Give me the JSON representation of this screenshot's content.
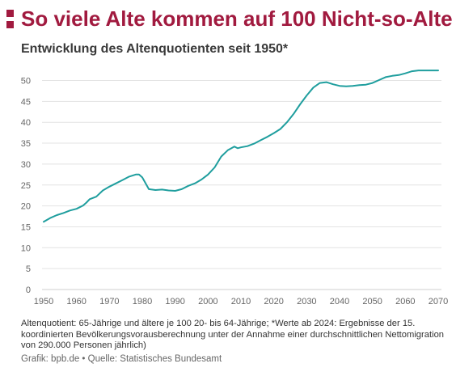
{
  "header": {
    "title": "So viele Alte kommen auf 100 Nicht-so-Alte",
    "subtitle": "Entwicklung des Altenquotienten seit 1950*"
  },
  "colors": {
    "accent": "#a11a3f",
    "line": "#1f9e9e",
    "grid": "#e3e3e3"
  },
  "chart_data": {
    "type": "line",
    "title": "So viele Alte kommen auf 100 Nicht-so-Alte",
    "subtitle": "Entwicklung des Altenquotienten seit 1950*",
    "xlabel": "",
    "ylabel": "",
    "xlim": [
      1950,
      2070
    ],
    "ylim": [
      0,
      53
    ],
    "x_ticks": [
      1950,
      1960,
      1970,
      1980,
      1990,
      2000,
      2010,
      2020,
      2030,
      2040,
      2050,
      2060,
      2070
    ],
    "y_ticks": [
      0,
      5,
      10,
      15,
      20,
      25,
      30,
      35,
      40,
      45,
      50
    ],
    "grid": "horizontal",
    "series": [
      {
        "x": [
          1950,
          1952,
          1954,
          1956,
          1958,
          1960,
          1962,
          1963,
          1964,
          1966,
          1968,
          1970,
          1972,
          1974,
          1976,
          1978,
          1979,
          1980,
          1982,
          1984,
          1986,
          1988,
          1990,
          1992,
          1994,
          1996,
          1998,
          2000,
          2002,
          2004,
          2006,
          2008,
          2009,
          2010,
          2012,
          2014,
          2016,
          2018,
          2020,
          2022,
          2024,
          2026,
          2028,
          2030,
          2032,
          2034,
          2036,
          2038,
          2040,
          2042,
          2044,
          2046,
          2048,
          2050,
          2052,
          2054,
          2056,
          2058,
          2060,
          2062,
          2064,
          2066,
          2068,
          2070
        ],
        "y": [
          16.2,
          17.1,
          17.8,
          18.3,
          18.9,
          19.3,
          20.1,
          20.8,
          21.6,
          22.2,
          23.7,
          24.6,
          25.4,
          26.2,
          27.0,
          27.5,
          27.5,
          26.8,
          24.0,
          23.8,
          23.9,
          23.7,
          23.6,
          24.0,
          24.8,
          25.4,
          26.3,
          27.5,
          29.2,
          31.8,
          33.3,
          34.2,
          33.8,
          34.0,
          34.3,
          34.9,
          35.7,
          36.5,
          37.4,
          38.4,
          40.0,
          42.0,
          44.3,
          46.4,
          48.3,
          49.4,
          49.6,
          49.1,
          48.7,
          48.6,
          48.7,
          48.9,
          49.0,
          49.4,
          50.1,
          50.8,
          51.1,
          51.3,
          51.7,
          52.2,
          52.4,
          52.4,
          52.4,
          52.4
        ]
      }
    ]
  },
  "footnote": "Altenquotient: 65-Jährige und ältere je 100 20- bis 64-Jährige; *Werte ab 2024: Ergebnisse der 15. koordinierten Bevölkerungsvorausberechnung unter der Annahme einer durchschnittlichen Nettomigration von 290.000 Personen jährlich)",
  "credit": "Grafik: bpb.de • Quelle: Statistisches Bundesamt",
  "icons": {
    "logo": "bpb-square-logo-icon"
  }
}
